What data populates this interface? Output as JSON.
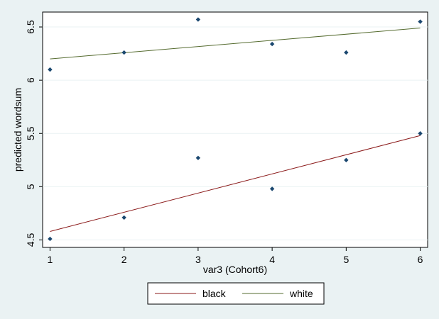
{
  "chart_data": {
    "type": "scatter",
    "xlabel": "var3 (Cohort6)",
    "ylabel": "predicted wordsum",
    "xlim": [
      0.9,
      6.1
    ],
    "ylim": [
      4.43,
      6.64
    ],
    "x_ticks": [
      "1",
      "2",
      "3",
      "4",
      "5",
      "6"
    ],
    "y_ticks": [
      "4.5",
      "5",
      "5.5",
      "6",
      "6.5"
    ],
    "grid": true,
    "legend_position": "bottom",
    "series": [
      {
        "name": "black",
        "color": "#8b1a1a",
        "x": [
          1,
          2,
          3,
          4,
          5,
          6
        ],
        "y": [
          4.51,
          4.71,
          5.27,
          4.98,
          5.25,
          5.5
        ],
        "fit": [
          4.58,
          5.48
        ]
      },
      {
        "name": "white",
        "color": "#556b2f",
        "x": [
          1,
          2,
          3,
          4,
          5,
          6
        ],
        "y": [
          6.1,
          6.26,
          6.57,
          6.34,
          6.26,
          6.55
        ],
        "fit": [
          6.2,
          6.49
        ]
      }
    ],
    "marker_color": "#1a476f"
  }
}
